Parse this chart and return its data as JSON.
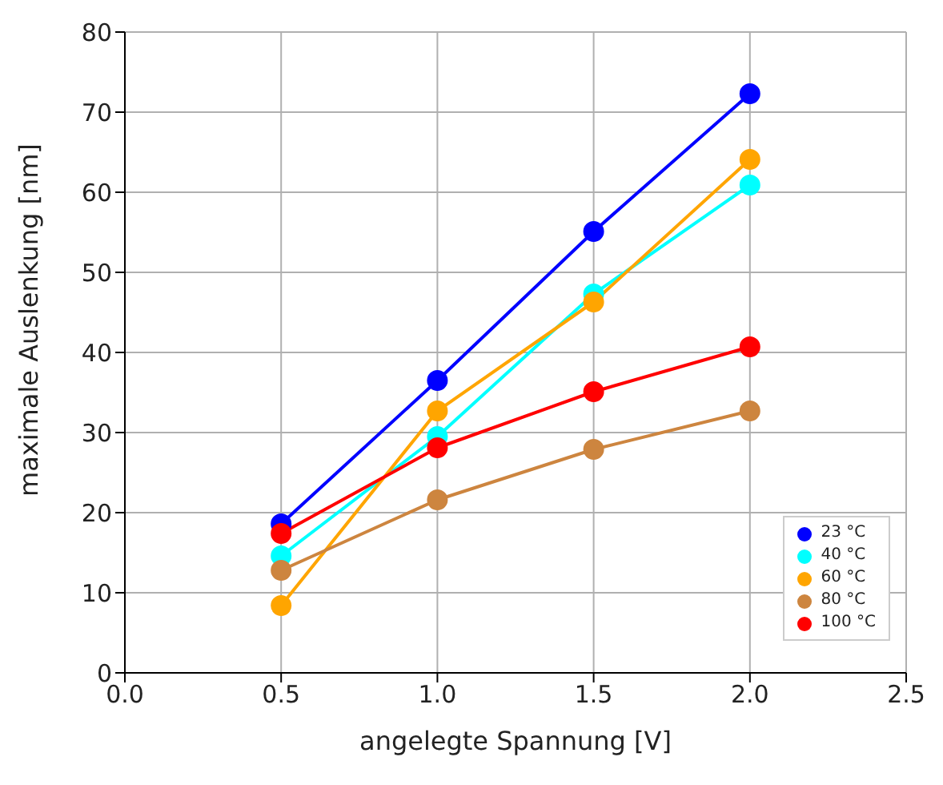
{
  "chart_data": {
    "type": "line",
    "xlabel": "angelegte Spannung [V]",
    "ylabel": "maximale Auslenkung [nm]",
    "x": [
      0.5,
      1.0,
      1.5,
      2.0
    ],
    "series": [
      {
        "name": "23 °C",
        "color": "#0000ff",
        "values": [
          18.6,
          36.5,
          55.1,
          72.3
        ]
      },
      {
        "name": "40 °C",
        "color": "#00ffff",
        "values": [
          14.6,
          29.5,
          47.3,
          60.9
        ]
      },
      {
        "name": "60 °C",
        "color": "#ffa500",
        "values": [
          8.4,
          32.7,
          46.3,
          64.1
        ]
      },
      {
        "name": "80 °C",
        "color": "#cd853f",
        "values": [
          12.8,
          21.6,
          27.9,
          32.7
        ]
      },
      {
        "name": "100 °C",
        "color": "#ff0000",
        "values": [
          17.4,
          28.1,
          35.1,
          40.7
        ]
      }
    ],
    "xlim": [
      0,
      2.5
    ],
    "xticks": [
      {
        "value": 0,
        "label": "0.0"
      },
      {
        "value": 0.5,
        "label": "0.5"
      },
      {
        "value": 1,
        "label": "1.0"
      },
      {
        "value": 1.5,
        "label": "1.5"
      },
      {
        "value": 2,
        "label": "2.0"
      },
      {
        "value": 2.5,
        "label": "2.5"
      }
    ],
    "ylim": [
      0,
      80
    ],
    "yticks": [
      0,
      10,
      20,
      30,
      40,
      50,
      60,
      70,
      80
    ],
    "grid": true,
    "legend": "bottom right",
    "marker": "circle",
    "line_style": "solid"
  }
}
